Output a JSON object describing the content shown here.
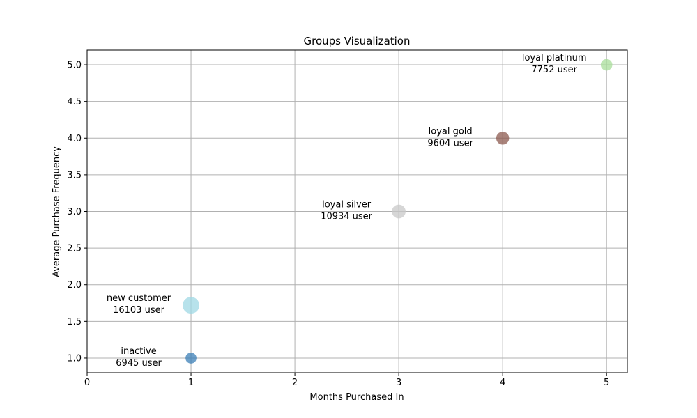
{
  "chart_data": {
    "type": "scatter",
    "title": "Groups Visualization",
    "xlabel": "Months Purchased In",
    "ylabel": "Average Purchase Frequency",
    "xlim": [
      0,
      5.2
    ],
    "ylim": [
      0.8,
      5.2
    ],
    "xticks": [
      0,
      1,
      2,
      3,
      4,
      5
    ],
    "yticks": [
      1.0,
      1.5,
      2.0,
      2.5,
      3.0,
      3.5,
      4.0,
      4.5,
      5.0
    ],
    "grid": true,
    "points": [
      {
        "group": "inactive",
        "x": 1,
        "y": 1.0,
        "users": 6945,
        "color": "#3b7fb7",
        "label_line1": "inactive",
        "label_line2": "6945 user"
      },
      {
        "group": "new customer",
        "x": 1,
        "y": 1.72,
        "users": 16103,
        "color": "#9fd8e4",
        "label_line1": "new customer",
        "label_line2": "16103 user"
      },
      {
        "group": "loyal silver",
        "x": 3,
        "y": 3.0,
        "users": 10934,
        "color": "#c8c8c8",
        "label_line1": "loyal silver",
        "label_line2": "10934 user"
      },
      {
        "group": "loyal gold",
        "x": 4,
        "y": 4.0,
        "users": 9604,
        "color": "#8c5a4f",
        "label_line1": "loyal gold",
        "label_line2": "9604 user"
      },
      {
        "group": "loyal platinum",
        "x": 5,
        "y": 5.0,
        "users": 7752,
        "color": "#a8dd99",
        "label_line1": "loyal platinum",
        "label_line2": "7752 user"
      }
    ]
  }
}
